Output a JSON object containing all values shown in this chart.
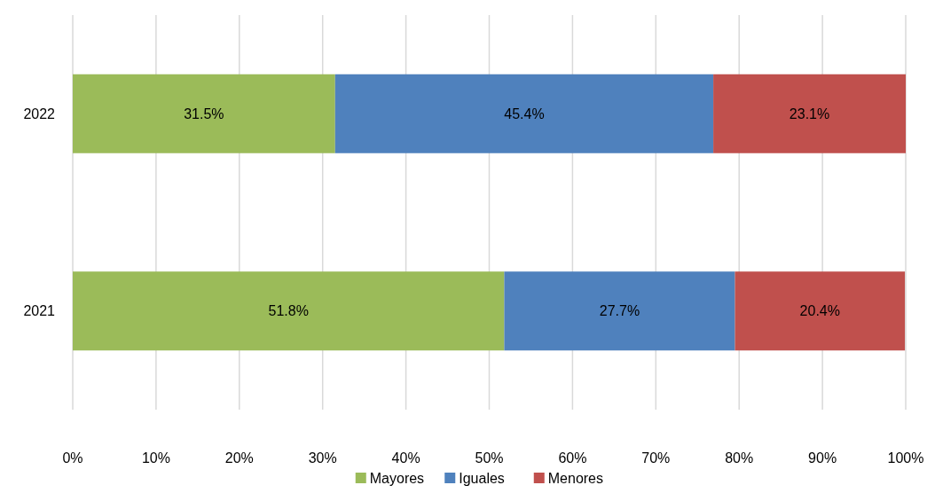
{
  "chart_data": {
    "type": "bar",
    "orientation": "horizontal",
    "stacked": true,
    "categories": [
      "2022",
      "2021"
    ],
    "series": [
      {
        "name": "Mayores",
        "color": "#9bbb59",
        "values": [
          31.5,
          51.8
        ],
        "value_labels": [
          "31.5%",
          "51.8%"
        ]
      },
      {
        "name": "Iguales",
        "color": "#4f81bd",
        "values": [
          45.4,
          27.7
        ],
        "value_labels": [
          "45.4%",
          "27.7%"
        ]
      },
      {
        "name": "Menores",
        "color": "#c0504d",
        "values": [
          23.1,
          20.4
        ],
        "value_labels": [
          "23.1%",
          "20.4%"
        ]
      }
    ],
    "xlim": [
      0,
      100
    ],
    "xticks": [
      {
        "value": 0,
        "label": "0%"
      },
      {
        "value": 10,
        "label": "10%"
      },
      {
        "value": 20,
        "label": "20%"
      },
      {
        "value": 30,
        "label": "30%"
      },
      {
        "value": 40,
        "label": "40%"
      },
      {
        "value": 50,
        "label": "50%"
      },
      {
        "value": 60,
        "label": "60%"
      },
      {
        "value": 70,
        "label": "70%"
      },
      {
        "value": 80,
        "label": "80%"
      },
      {
        "value": 90,
        "label": "90%"
      },
      {
        "value": 100,
        "label": "100%"
      }
    ],
    "grid": "x",
    "legend": "bottom"
  }
}
